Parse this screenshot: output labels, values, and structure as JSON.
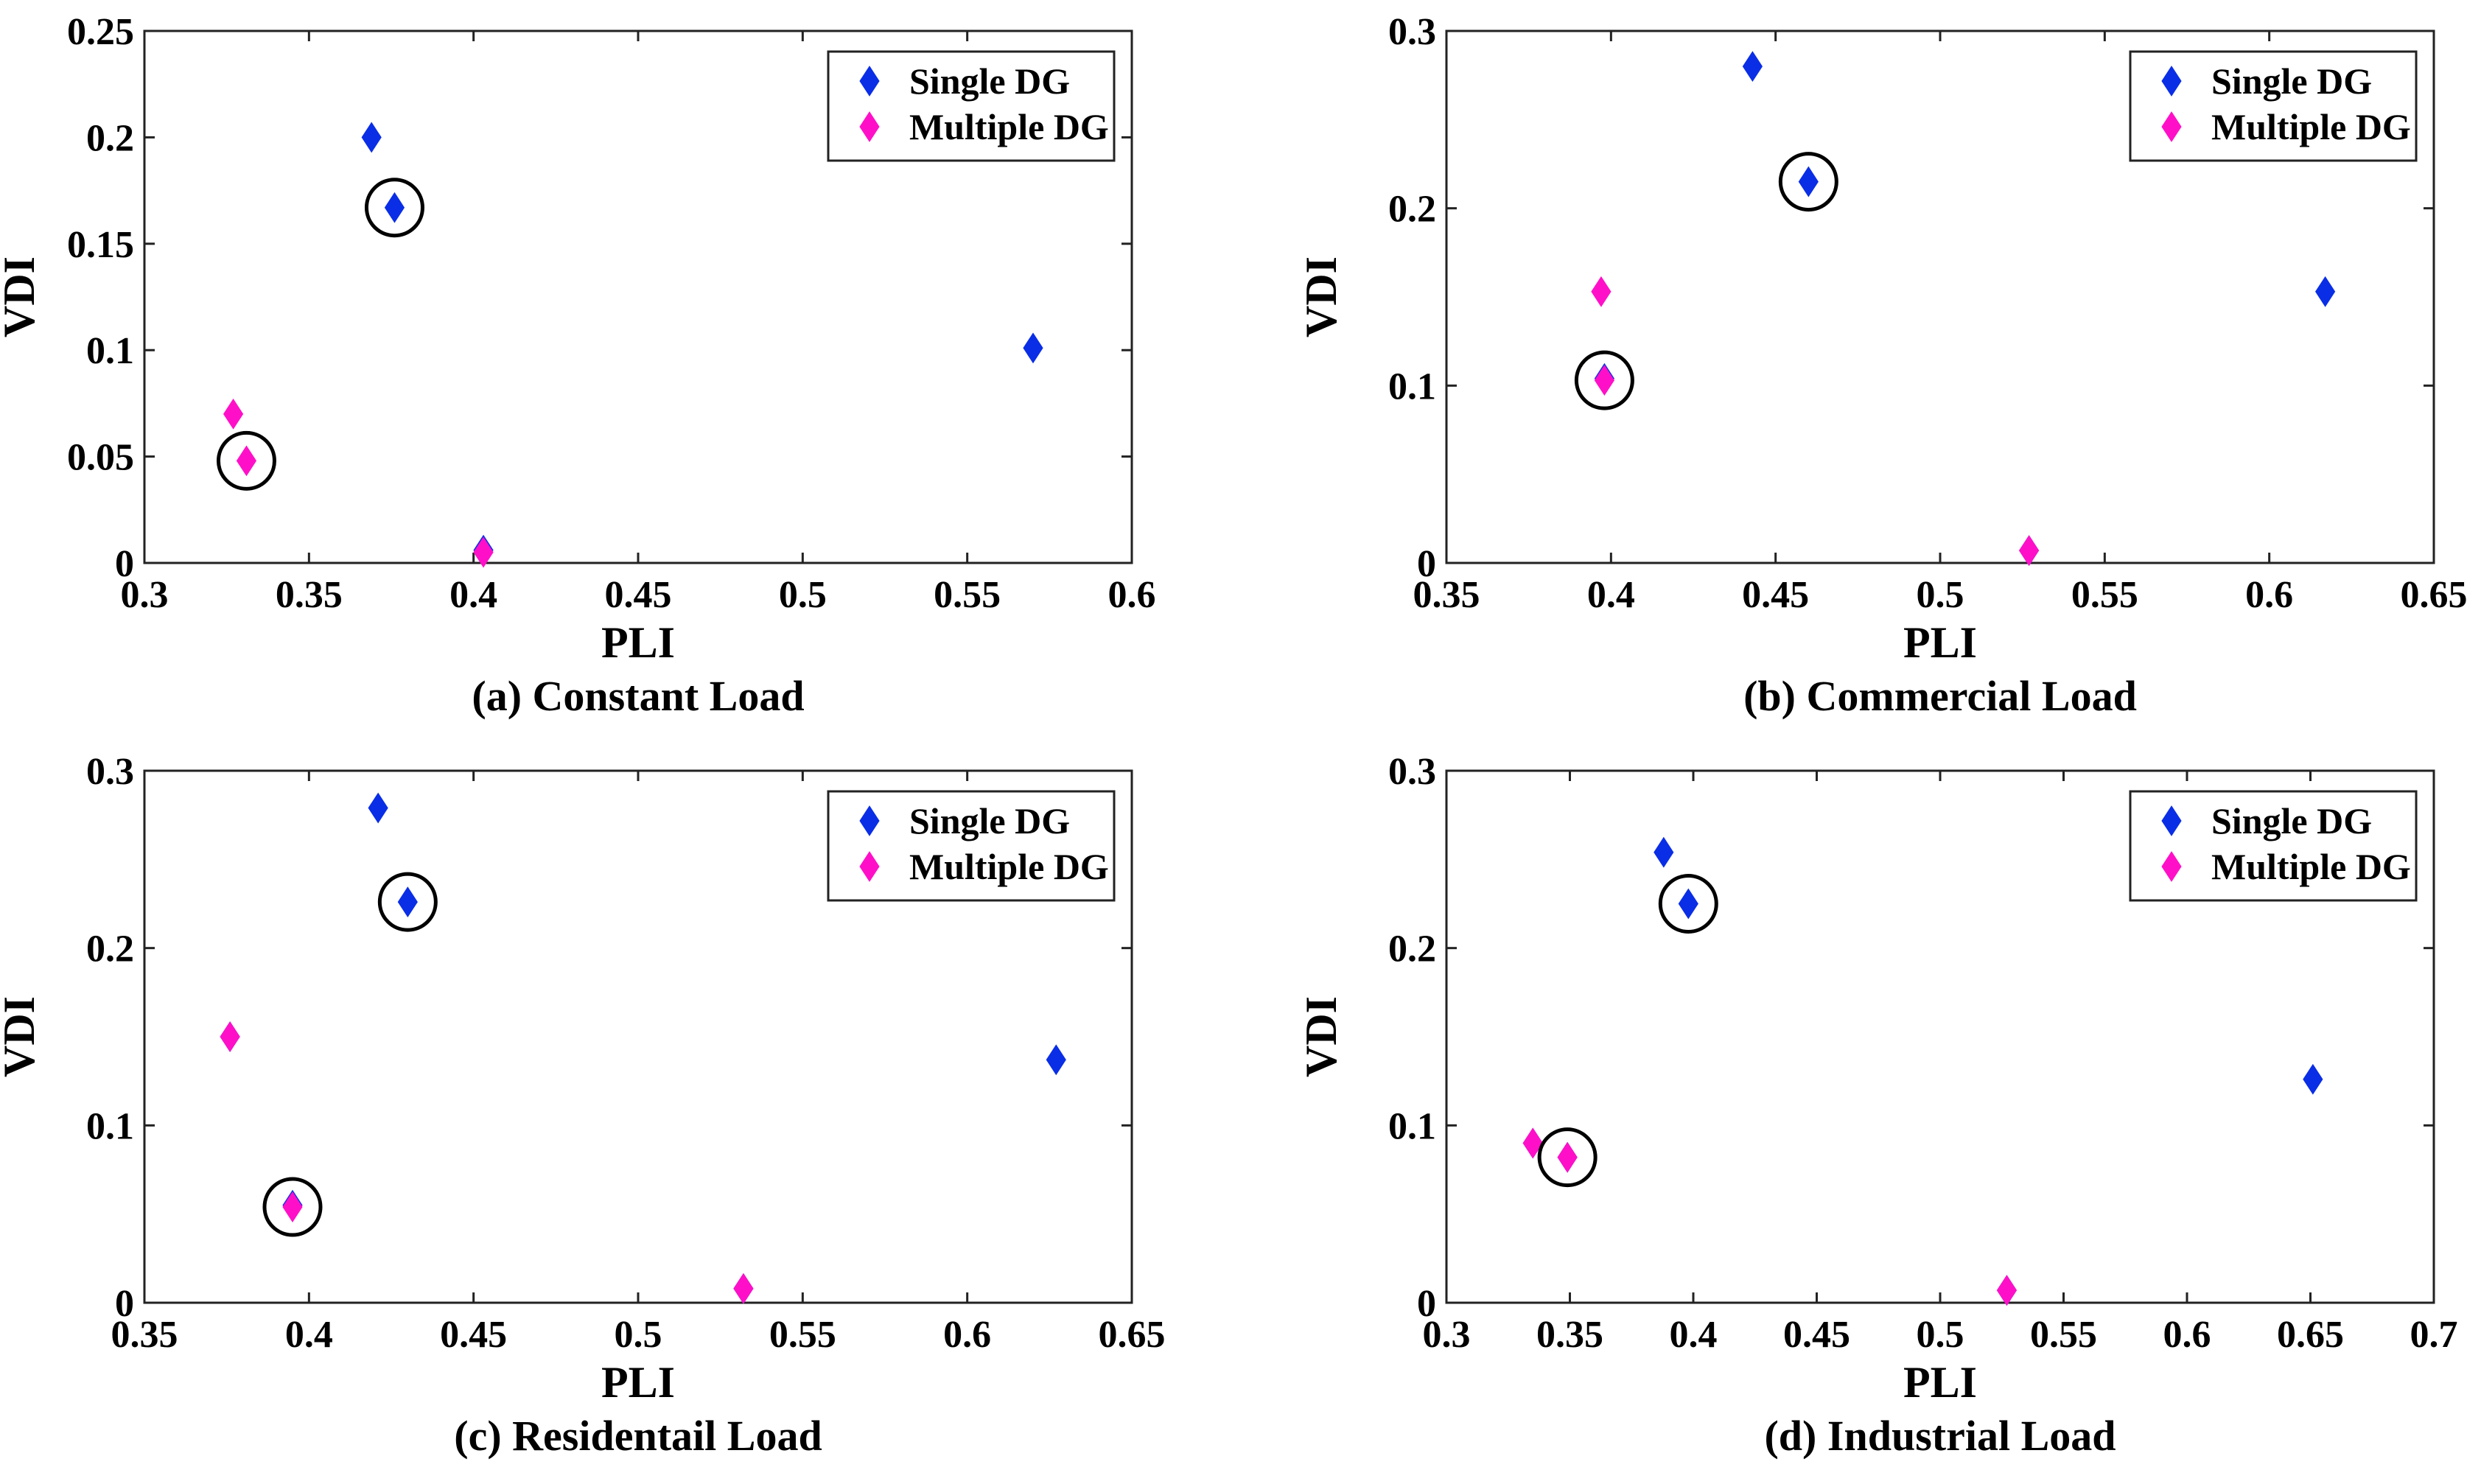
{
  "chart_data": [
    {
      "type": "scatter",
      "title": "(a) Constant Load",
      "xlabel": "PLI",
      "ylabel": "VDI",
      "xlim": [
        0.3,
        0.6
      ],
      "ylim": [
        0,
        0.25
      ],
      "xticks": [
        0.3,
        0.35,
        0.4,
        0.45,
        0.5,
        0.55,
        0.6
      ],
      "xtick_labels": [
        "0.3",
        "0.35",
        "0.4",
        "0.45",
        "0.5",
        "0.55",
        "0.6"
      ],
      "yticks": [
        0,
        0.05,
        0.1,
        0.15,
        0.2,
        0.25
      ],
      "ytick_labels": [
        "0",
        "0.05",
        "0.1",
        "0.15",
        "0.2",
        "0.25"
      ],
      "legend": "top-right",
      "series": [
        {
          "name": "Single DG",
          "color": "#0a2ee6",
          "marker": "diamond",
          "x": [
            0.369,
            0.376,
            0.57,
            0.403
          ],
          "y": [
            0.2,
            0.167,
            0.101,
            0.006
          ]
        },
        {
          "name": "Multiple DG",
          "color": "#ff10c8",
          "marker": "diamond",
          "x": [
            0.327,
            0.331,
            0.403
          ],
          "y": [
            0.07,
            0.048,
            0.005
          ]
        }
      ],
      "highlighted": [
        {
          "x": 0.376,
          "y": 0.167
        },
        {
          "x": 0.331,
          "y": 0.048
        }
      ]
    },
    {
      "type": "scatter",
      "title": "(b) Commercial Load",
      "xlabel": "PLI",
      "ylabel": "VDI",
      "xlim": [
        0.35,
        0.65
      ],
      "ylim": [
        0,
        0.3
      ],
      "xticks": [
        0.35,
        0.4,
        0.45,
        0.5,
        0.55,
        0.6,
        0.65
      ],
      "xtick_labels": [
        "0.35",
        "0.4",
        "0.45",
        "0.5",
        "0.55",
        "0.6",
        "0.65"
      ],
      "yticks": [
        0,
        0.1,
        0.2,
        0.3
      ],
      "ytick_labels": [
        "0",
        "0.1",
        "0.2",
        "0.3"
      ],
      "legend": "top-right",
      "series": [
        {
          "name": "Single DG",
          "color": "#0a2ee6",
          "marker": "diamond",
          "x": [
            0.443,
            0.46,
            0.617,
            0.398,
            0.527
          ],
          "y": [
            0.28,
            0.215,
            0.153,
            0.104,
            0.007
          ]
        },
        {
          "name": "Multiple DG",
          "color": "#ff10c8",
          "marker": "diamond",
          "x": [
            0.397,
            0.398,
            0.527
          ],
          "y": [
            0.153,
            0.103,
            0.007
          ]
        }
      ],
      "highlighted": [
        {
          "x": 0.46,
          "y": 0.215
        },
        {
          "x": 0.398,
          "y": 0.103
        }
      ]
    },
    {
      "type": "scatter",
      "title": "(c) Residentail Load",
      "xlabel": "PLI",
      "ylabel": "VDI",
      "xlim": [
        0.35,
        0.65
      ],
      "ylim": [
        0,
        0.3
      ],
      "xticks": [
        0.35,
        0.4,
        0.45,
        0.5,
        0.55,
        0.6,
        0.65
      ],
      "xtick_labels": [
        "0.35",
        "0.4",
        "0.45",
        "0.5",
        "0.55",
        "0.6",
        "0.65"
      ],
      "yticks": [
        0,
        0.1,
        0.2,
        0.3
      ],
      "ytick_labels": [
        "0",
        "0.1",
        "0.2",
        "0.3"
      ],
      "legend": "top-right",
      "series": [
        {
          "name": "Single DG",
          "color": "#0a2ee6",
          "marker": "diamond",
          "x": [
            0.421,
            0.43,
            0.627,
            0.376,
            0.395,
            0.532
          ],
          "y": [
            0.279,
            0.226,
            0.137,
            0.15,
            0.055,
            0.008
          ]
        },
        {
          "name": "Multiple DG",
          "color": "#ff10c8",
          "marker": "diamond",
          "x": [
            0.376,
            0.395,
            0.532
          ],
          "y": [
            0.15,
            0.054,
            0.008
          ]
        }
      ],
      "highlighted": [
        {
          "x": 0.43,
          "y": 0.226
        },
        {
          "x": 0.395,
          "y": 0.054
        }
      ]
    },
    {
      "type": "scatter",
      "title": "(d) Industrial Load",
      "xlabel": "PLI",
      "ylabel": "VDI",
      "xlim": [
        0.3,
        0.7
      ],
      "ylim": [
        0,
        0.3
      ],
      "xticks": [
        0.3,
        0.35,
        0.4,
        0.45,
        0.5,
        0.55,
        0.6,
        0.65,
        0.7
      ],
      "xtick_labels": [
        "0.3",
        "0.35",
        "0.4",
        "0.45",
        "0.5",
        "0.55",
        "0.6",
        "0.65",
        "0.7"
      ],
      "yticks": [
        0,
        0.1,
        0.2,
        0.3
      ],
      "ytick_labels": [
        "0",
        "0.1",
        "0.2",
        "0.3"
      ],
      "legend": "top-right",
      "series": [
        {
          "name": "Single DG",
          "color": "#0a2ee6",
          "marker": "diamond",
          "x": [
            0.388,
            0.398,
            0.651,
            0.335,
            0.349,
            0.527
          ],
          "y": [
            0.254,
            0.225,
            0.126,
            0.09,
            0.082,
            0.007
          ]
        },
        {
          "name": "Multiple DG",
          "color": "#ff10c8",
          "marker": "diamond",
          "x": [
            0.335,
            0.349,
            0.527
          ],
          "y": [
            0.09,
            0.082,
            0.007
          ]
        }
      ],
      "highlighted": [
        {
          "x": 0.398,
          "y": 0.225
        },
        {
          "x": 0.349,
          "y": 0.082
        }
      ]
    }
  ]
}
